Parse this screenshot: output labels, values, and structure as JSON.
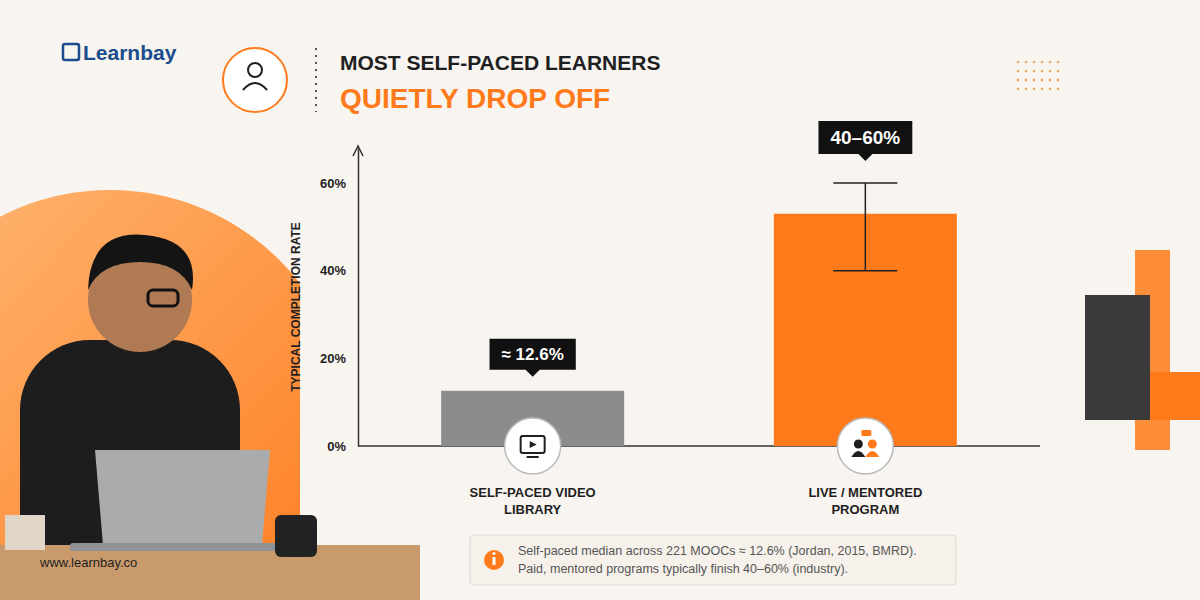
{
  "header": {
    "logo": "Learnbay",
    "website": "www.learnbay.co"
  },
  "chart_data": {
    "type": "bar",
    "title": "MOST SELF-PACED LEARNERS",
    "subtitle": "QUIETLY DROP OFF",
    "y_label": "TYPICAL COMPLETION RATE",
    "categories": [
      "SELF-PACED VIDEO LIBRARY",
      "LIVE / MENTORED PROGRAM"
    ],
    "values": [
      12.6,
      53
    ],
    "value_labels": [
      "≈ 12.6%",
      null
    ],
    "error_low": [
      null,
      40
    ],
    "error_high": [
      null,
      60
    ],
    "error_labels": [
      null,
      "40–60%"
    ],
    "colors": [
      "#8c8c8c",
      "#ff7a1a"
    ],
    "ylim": [
      0,
      68
    ],
    "yticks": [
      {
        "value": 0,
        "label": "0%"
      },
      {
        "value": 20,
        "label": "20%"
      },
      {
        "value": 40,
        "label": "40%"
      },
      {
        "value": 60,
        "label": "60%"
      }
    ],
    "grid": false,
    "data_labels": true,
    "footnote": [
      "Self-paced median across 221 MOOCs ≈ 12.6% (Jordan, 2015, BMRD).",
      "Paid, mentored programs typically finish 40–60% (industry)."
    ]
  }
}
